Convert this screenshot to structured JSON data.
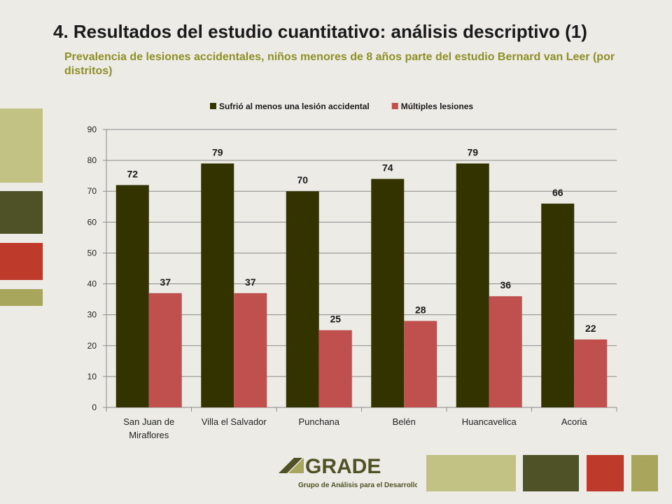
{
  "slide": {
    "title": "4. Resultados del estudio cuantitativo: análisis descriptivo (1)",
    "subtitle": "Prevalencia de lesiones accidentales, niños menores de 8 años parte del estudio Bernard van Leer (por distritos)"
  },
  "colors": {
    "series_1": "#333300",
    "series_2": "#c0504d",
    "title": "#1a1a1a",
    "subtitle": "#8f8f28",
    "deco_light": "#c3c285",
    "deco_dark": "#4f5227",
    "deco_red": "#be3a2b",
    "deco_olive": "#a8a65d"
  },
  "logo": {
    "name": "GRADE",
    "tagline": "Grupo de Análisis para el Desarrollo"
  },
  "chart_data": {
    "type": "bar",
    "categories": [
      "San Juan de Miraflores",
      "Villa el Salvador",
      "Punchana",
      "Belén",
      "Huancavelica",
      "Acoria"
    ],
    "series": [
      {
        "name": "Sufrió al menos una lesión accidental",
        "values": [
          72,
          79,
          70,
          74,
          79,
          66
        ]
      },
      {
        "name": "Múltiples lesiones",
        "values": [
          37,
          37,
          25,
          28,
          36,
          22
        ]
      }
    ],
    "title": "",
    "xlabel": "",
    "ylabel": "",
    "ylim": [
      0,
      90
    ],
    "yticks": [
      0,
      10,
      20,
      30,
      40,
      50,
      60,
      70,
      80,
      90
    ],
    "grid": true,
    "legend_position": "top",
    "data_labels": true
  }
}
